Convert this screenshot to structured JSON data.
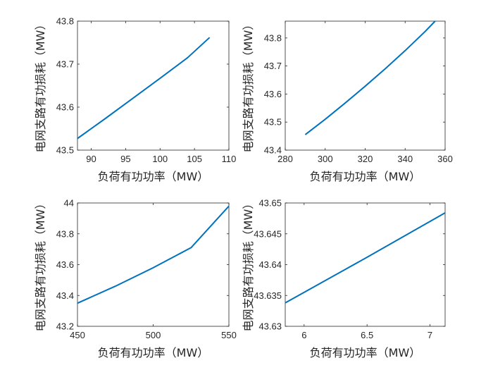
{
  "chart_data": [
    {
      "type": "line",
      "title": "",
      "xlabel": "负荷有功功率（MW）",
      "ylabel": "电网支路有功损耗（MW）",
      "xlim": [
        88,
        110
      ],
      "ylim": [
        43.5,
        43.8
      ],
      "xticks": [
        "90",
        "95",
        "100",
        "105",
        "110"
      ],
      "yticks": [
        "43.5",
        "43.6",
        "43.7",
        "43.8"
      ],
      "series": [
        {
          "color": "#0072BD",
          "x": [
            88,
            92,
            96,
            100,
            104,
            107.2
          ],
          "y": [
            43.527,
            43.573,
            43.62,
            43.667,
            43.715,
            43.762
          ]
        }
      ]
    },
    {
      "type": "line",
      "title": "",
      "xlabel": "负荷有功功率（MW）",
      "ylabel": "电网支路有功损耗（MW）",
      "xlim": [
        280,
        360
      ],
      "ylim": [
        43.4,
        43.86
      ],
      "xticks": [
        "280",
        "300",
        "320",
        "340",
        "360"
      ],
      "yticks": [
        "43.4",
        "43.5",
        "43.6",
        "43.7",
        "43.8"
      ],
      "series": [
        {
          "color": "#0072BD",
          "x": [
            290,
            300,
            310,
            320,
            330,
            340,
            350,
            355
          ],
          "y": [
            43.455,
            43.51,
            43.568,
            43.628,
            43.69,
            43.755,
            43.823,
            43.86
          ]
        }
      ]
    },
    {
      "type": "line",
      "title": "",
      "xlabel": "负荷有功功率（MW）",
      "ylabel": "电网支路有功损耗（MW）",
      "xlim": [
        450,
        550
      ],
      "ylim": [
        43.2,
        44
      ],
      "xticks": [
        "450",
        "500",
        "550"
      ],
      "yticks": [
        "43.2",
        "43.4",
        "43.6",
        "43.8",
        "44"
      ],
      "series": [
        {
          "color": "#0072BD",
          "x": [
            450,
            475,
            500,
            525,
            550
          ],
          "y": [
            43.35,
            43.46,
            43.58,
            43.71,
            43.98
          ]
        }
      ]
    },
    {
      "type": "line",
      "title": "",
      "xlabel": "负荷有功功率（MW）",
      "ylabel": "电网支路有功损耗（MW）",
      "xlim": [
        5.85,
        7.12
      ],
      "ylim": [
        43.63,
        43.65
      ],
      "xticks": [
        "6",
        "6.5",
        "7"
      ],
      "yticks": [
        "43.63",
        "43.635",
        "43.64",
        "43.645",
        "43.65"
      ],
      "series": [
        {
          "color": "#0072BD",
          "x": [
            5.85,
            6.5,
            7.12
          ],
          "y": [
            43.6338,
            43.6412,
            43.6484
          ]
        }
      ]
    }
  ]
}
